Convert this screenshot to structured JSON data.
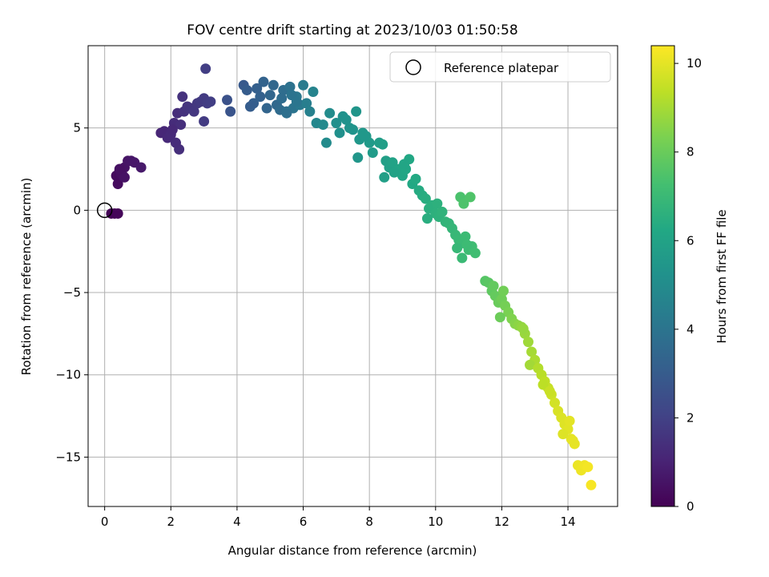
{
  "chart_data": {
    "type": "scatter",
    "title": "FOV centre drift starting at 2023/10/03 01:50:58",
    "xlabel": "Angular distance from reference (arcmin)",
    "ylabel": "Rotation from reference (arcmin)",
    "colorbar_label": "Hours from first FF file",
    "colormap": "viridis",
    "xlim": [
      -0.5,
      15.5
    ],
    "ylim": [
      -18,
      10
    ],
    "clim": [
      0,
      10.4
    ],
    "x_ticks": [
      0,
      2,
      4,
      6,
      8,
      10,
      12,
      14
    ],
    "y_ticks": [
      -15,
      -10,
      -5,
      0,
      5
    ],
    "colorbar_ticks": [
      0,
      2,
      4,
      6,
      8,
      10
    ],
    "grid": true,
    "legend": {
      "position": "top-right",
      "entries": [
        "Reference platepar"
      ]
    },
    "reference_point": {
      "x": 0,
      "y": 0
    },
    "point_color": "time-shaded",
    "series": [
      {
        "x": [
          0.2,
          0.3,
          0.4,
          0.35,
          0.45,
          0.5,
          0.4,
          0.55,
          0.6,
          0.7,
          0.8,
          0.9,
          1.1,
          0.5,
          0.6,
          0.45,
          1.7,
          1.8,
          1.9,
          2.0,
          2.1,
          2.2,
          2.3,
          2.25,
          2.4,
          2.5,
          2.6,
          2.7,
          2.8,
          2.9,
          3.0,
          3.1,
          3.2,
          2.15,
          2.05,
          3.0,
          3.05,
          2.35,
          3.7,
          3.8,
          4.2,
          4.3,
          4.5,
          4.7,
          4.8,
          5.0,
          5.2,
          5.3,
          5.4,
          5.5,
          5.6,
          5.7,
          5.8,
          5.9,
          6.0,
          6.1,
          6.2,
          6.3,
          4.9,
          5.1,
          5.35,
          5.65,
          4.4,
          4.6,
          5.5,
          5.8,
          6.4,
          6.6,
          6.8,
          7.0,
          7.2,
          7.4,
          7.5,
          7.6,
          7.7,
          7.8,
          7.9,
          8.0,
          6.7,
          7.1,
          7.3,
          7.65,
          7.85,
          8.1,
          8.3,
          8.4,
          8.5,
          8.6,
          8.7,
          8.8,
          8.9,
          9.0,
          9.1,
          9.2,
          8.45,
          8.75,
          9.05,
          9.3,
          9.4,
          9.5,
          9.6,
          9.7,
          9.8,
          9.9,
          10.0,
          10.1,
          10.2,
          10.3,
          10.4,
          9.75,
          10.05,
          10.5,
          10.6,
          10.7,
          10.8,
          10.9,
          11.0,
          11.1,
          11.2,
          10.65,
          10.75,
          10.85,
          11.05,
          10.8,
          10.95,
          11.5,
          11.6,
          11.7,
          11.8,
          11.9,
          12.0,
          12.1,
          12.2,
          11.75,
          11.95,
          12.05,
          12.3,
          12.4,
          12.5,
          12.6,
          12.7,
          12.8,
          12.9,
          13.0,
          12.65,
          12.85,
          13.1,
          13.2,
          13.3,
          13.4,
          13.5,
          13.6,
          13.7,
          13.25,
          13.45,
          13.8,
          13.9,
          14.0,
          14.1,
          14.2,
          13.85,
          14.05,
          14.15,
          14.3,
          14.4,
          14.5,
          14.6,
          14.7
        ],
        "y": [
          -0.2,
          -0.2,
          -0.2,
          2.1,
          2.4,
          2.5,
          1.6,
          2.1,
          2.6,
          3.0,
          3.0,
          2.9,
          2.6,
          2.2,
          2.0,
          2.5,
          4.7,
          4.8,
          4.4,
          4.6,
          5.3,
          5.9,
          5.2,
          3.7,
          6.0,
          6.3,
          6.2,
          6.0,
          6.5,
          6.6,
          6.8,
          6.5,
          6.6,
          4.1,
          4.9,
          5.4,
          8.6,
          6.9,
          6.7,
          6.0,
          7.6,
          7.3,
          6.5,
          6.9,
          7.8,
          7.0,
          6.4,
          6.1,
          7.3,
          6.0,
          7.5,
          6.2,
          6.9,
          6.4,
          7.6,
          6.5,
          6.0,
          7.2,
          6.2,
          7.6,
          6.8,
          7.0,
          6.3,
          7.4,
          5.9,
          6.6,
          5.3,
          5.2,
          5.9,
          5.3,
          5.7,
          5.0,
          4.9,
          6.0,
          4.3,
          4.7,
          4.5,
          4.1,
          4.1,
          4.7,
          5.5,
          3.2,
          4.5,
          3.5,
          4.1,
          4.0,
          3.0,
          2.6,
          2.9,
          2.4,
          2.5,
          2.1,
          2.5,
          3.1,
          2.0,
          2.3,
          2.8,
          1.6,
          1.9,
          1.2,
          0.9,
          0.7,
          0.1,
          0.3,
          -0.2,
          -0.4,
          -0.1,
          -0.7,
          -0.8,
          -0.5,
          0.4,
          -1.1,
          -1.5,
          -1.8,
          -2.0,
          -1.6,
          -2.4,
          -2.2,
          -2.6,
          -2.3,
          0.8,
          0.4,
          0.8,
          -2.9,
          -2.1,
          -4.3,
          -4.4,
          -4.9,
          -5.2,
          -5.6,
          -5.4,
          -5.8,
          -6.2,
          -4.6,
          -6.5,
          -4.9,
          -6.6,
          -6.9,
          -7.0,
          -7.1,
          -7.5,
          -8.0,
          -8.6,
          -9.1,
          -7.2,
          -9.4,
          -9.6,
          -10.0,
          -10.4,
          -10.8,
          -11.2,
          -11.7,
          -12.2,
          -10.6,
          -11.0,
          -12.6,
          -13.0,
          -13.3,
          -13.9,
          -14.2,
          -13.6,
          -12.8,
          -14.0,
          -15.5,
          -15.8,
          -15.5,
          -15.6,
          -16.7
        ],
        "t": [
          0.05,
          0.1,
          0.15,
          0.3,
          0.35,
          0.4,
          0.3,
          0.45,
          0.5,
          0.55,
          0.6,
          0.65,
          0.7,
          0.4,
          0.5,
          0.45,
          1.1,
          1.15,
          1.2,
          1.25,
          1.3,
          1.35,
          1.4,
          1.4,
          1.5,
          1.55,
          1.6,
          1.65,
          1.7,
          1.75,
          1.8,
          1.85,
          1.9,
          1.3,
          1.2,
          1.8,
          1.9,
          1.5,
          2.6,
          2.7,
          2.9,
          3.0,
          3.1,
          3.2,
          3.3,
          3.4,
          3.5,
          3.6,
          3.7,
          3.8,
          3.9,
          4.0,
          4.1,
          4.2,
          4.3,
          4.4,
          4.5,
          4.6,
          3.35,
          3.45,
          3.65,
          3.95,
          3.05,
          3.15,
          3.8,
          4.05,
          4.8,
          4.9,
          5.0,
          5.1,
          5.2,
          5.3,
          5.35,
          5.4,
          5.45,
          5.5,
          5.55,
          5.6,
          4.95,
          5.15,
          5.25,
          5.42,
          5.52,
          5.65,
          5.75,
          5.8,
          5.85,
          5.9,
          5.95,
          6.0,
          6.05,
          6.1,
          6.15,
          6.2,
          5.82,
          5.98,
          6.12,
          6.25,
          6.3,
          6.35,
          6.4,
          6.45,
          6.5,
          6.55,
          6.6,
          6.65,
          6.7,
          6.75,
          6.8,
          6.48,
          6.62,
          6.85,
          6.9,
          6.95,
          7.0,
          7.05,
          7.1,
          7.15,
          7.2,
          6.92,
          7.4,
          7.45,
          7.5,
          7.0,
          7.08,
          7.6,
          7.7,
          7.8,
          7.9,
          8.0,
          8.1,
          8.2,
          8.3,
          7.85,
          8.05,
          8.15,
          8.4,
          8.5,
          8.6,
          8.7,
          8.8,
          8.9,
          9.0,
          9.1,
          8.75,
          8.95,
          9.2,
          9.3,
          9.4,
          9.5,
          9.6,
          9.7,
          9.8,
          9.35,
          9.55,
          9.85,
          9.9,
          9.95,
          10.0,
          10.05,
          9.88,
          9.97,
          10.02,
          10.1,
          10.15,
          10.2,
          10.25,
          10.3
        ]
      }
    ]
  }
}
